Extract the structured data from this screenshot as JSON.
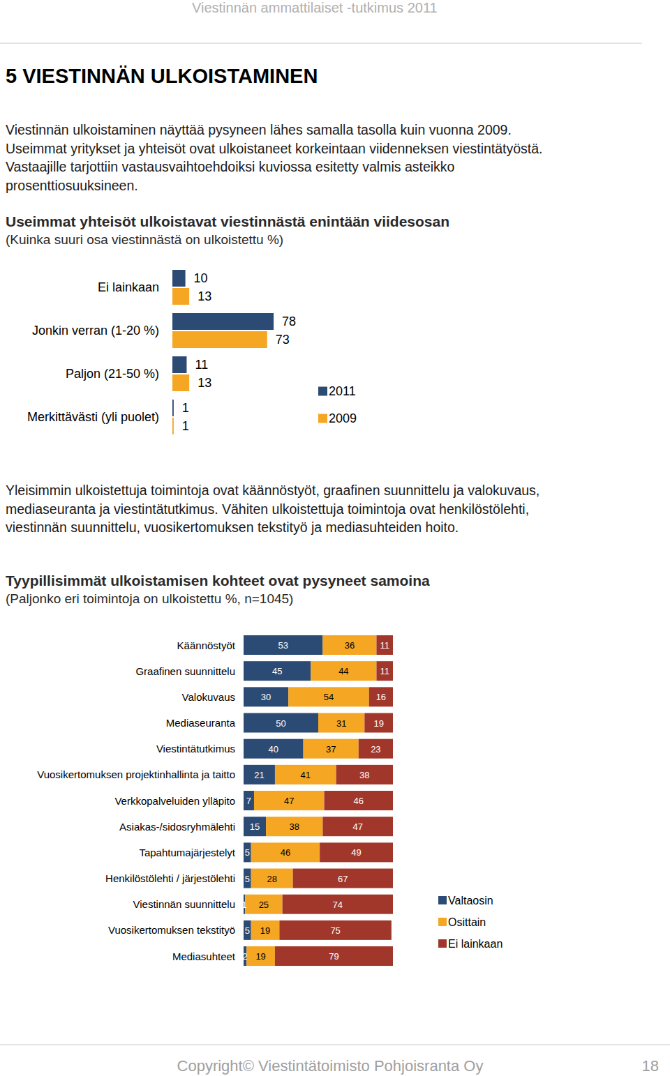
{
  "page": {
    "header": "Viestinnän ammattilaiset -tutkimus 2011",
    "heading": "5 VIESTINNÄN ULKOISTAMINEN",
    "paragraphs": [
      [
        "Viestinnän ulkoistaminen näyttää pysyneen lähes samalla tasolla kuin vuonna 2009.",
        "Useimmat yritykset ja yhteisöt ovat ulkoistaneet korkeintaan viidenneksen viestintätyöstä.",
        "Vastaajille tarjottiin vastausvaihtoehdoiksi kuviossa esitetty valmis asteikko",
        "prosenttiosuuksineen."
      ],
      [
        "Yleisimmin ulkoistettuja toimintoja ovat käännöstyöt, graafinen suunnittelu ja valokuvaus,",
        "mediaseuranta ja viestintätutkimus. Vähiten ulkoistettuja toimintoja ovat henkilöstölehti,",
        "viestinnän suunnittelu, vuosikertomuksen tekstityö ja mediasuhteiden hoito."
      ]
    ],
    "footer": {
      "copyright": "Copyright© Viestintätoimisto Pohjoisranta Oy",
      "page_number": 18
    }
  },
  "chart_data": [
    {
      "type": "bar",
      "orientation": "horizontal",
      "title": "Useimmat yhteisöt ulkoistavat viestinnästä enintään viidesosan",
      "subtitle": "(Kuinka suuri osa viestinnästä on ulkoistettu %)",
      "categories": [
        "Ei lainkaan",
        "Jonkin verran (1-20 %)",
        "Paljon (21-50 %)",
        "Merkittävästi (yli puolet)"
      ],
      "series": [
        {
          "name": "2011",
          "color": "#2c4b74",
          "values": [
            10,
            78,
            11,
            1
          ]
        },
        {
          "name": "2009",
          "color": "#f5a623",
          "values": [
            13,
            73,
            13,
            1
          ]
        }
      ],
      "xlim": [
        0,
        100
      ],
      "data_labels": true,
      "tick_labels": "y",
      "legend": "right"
    },
    {
      "type": "bar",
      "orientation": "horizontal",
      "stacked": true,
      "title": "Tyypillisimmät ulkoistamisen kohteet ovat pysyneet samoina",
      "subtitle": "(Paljonko eri toimintoja on ulkoistettu %, n=1045)",
      "categories": [
        "Käännöstyöt",
        "Graafinen suunnittelu",
        "Valokuvaus",
        "Mediaseuranta",
        "Viestintätutkimus",
        "Vuosikertomuksen projektinhallinta ja taitto",
        "Verkkopalveluiden ylläpito",
        "Asiakas-/sidosryhmälehti",
        "Tapahtumajärjestelyt",
        "Henkilöstölehti / järjestölehti",
        "Viestinnän suunnittelu",
        "Vuosikertomuksen tekstityö",
        "Mediasuhteet"
      ],
      "series": [
        {
          "name": "Valtaosin",
          "color": "#2c4b74",
          "values": [
            53,
            45,
            30,
            50,
            40,
            21,
            7,
            15,
            5,
            5,
            1,
            5,
            2
          ]
        },
        {
          "name": "Osittain",
          "color": "#f5a623",
          "values": [
            36,
            44,
            54,
            31,
            37,
            41,
            47,
            38,
            46,
            28,
            25,
            19,
            19
          ]
        },
        {
          "name": "Ei lainkaan",
          "color": "#a0372a",
          "values": [
            11,
            11,
            16,
            19,
            23,
            38,
            46,
            47,
            49,
            67,
            74,
            75,
            79
          ]
        }
      ],
      "xlim": [
        0,
        100
      ],
      "data_labels": true,
      "tick_labels": "y",
      "legend": "right"
    }
  ]
}
